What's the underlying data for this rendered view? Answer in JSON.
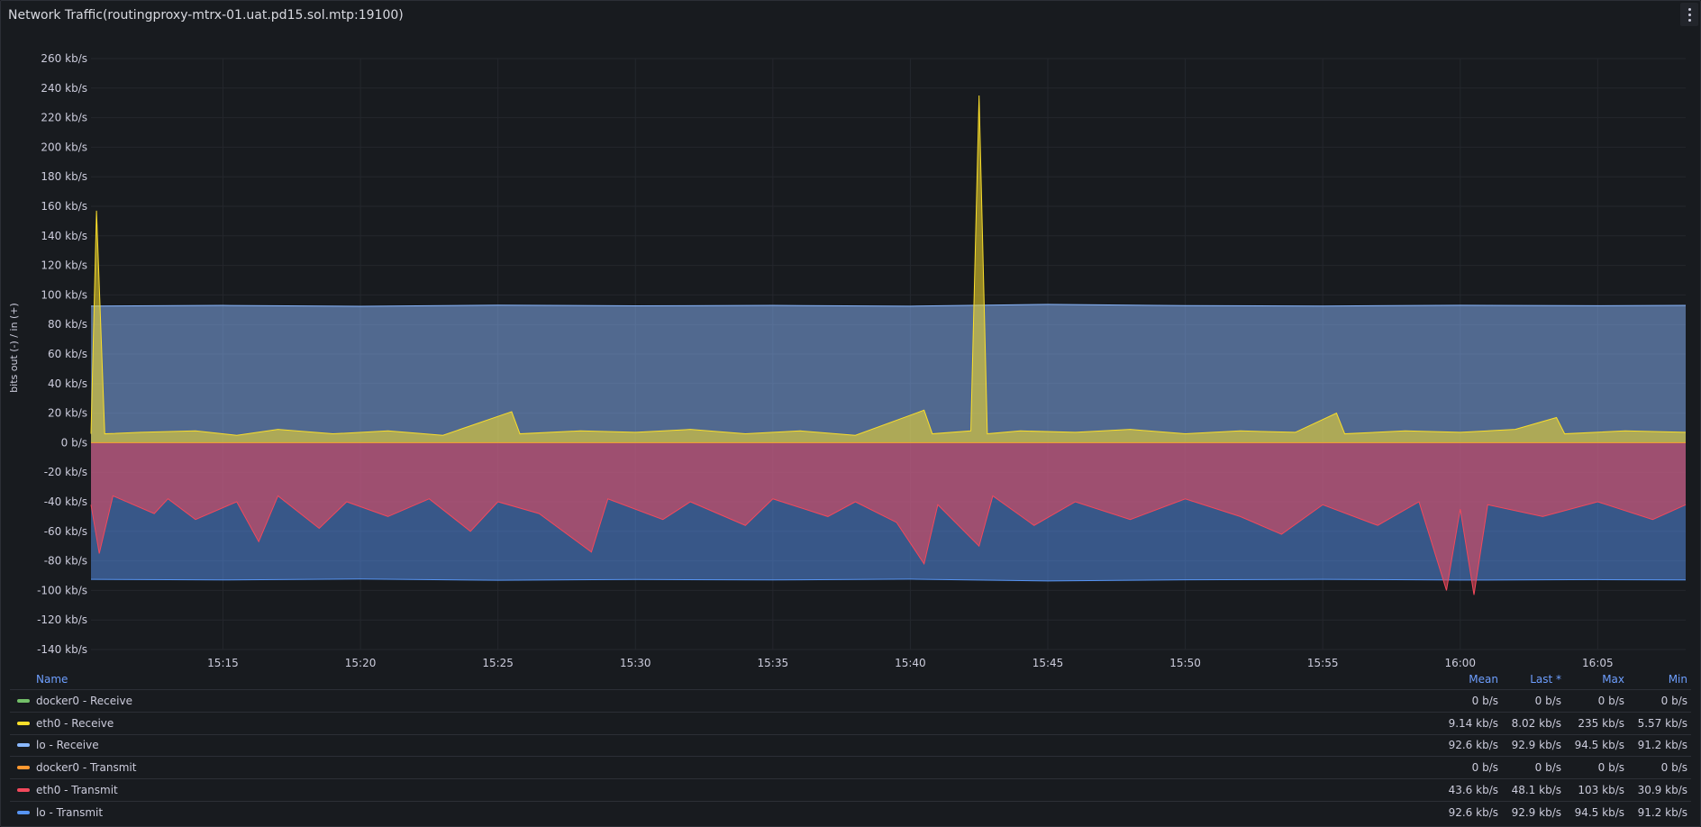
{
  "panel": {
    "title": "Network Traffic(routingproxy-mtrx-01.uat.pd15.sol.mtp:19100)",
    "menu_icon": "vertical-ellipsis-icon"
  },
  "chart_data": {
    "type": "area",
    "ylabel": "bits out (-) / in (+)",
    "xlabel": "",
    "y_unit": "kb/s",
    "ylim": [
      -140,
      260
    ],
    "y_ticks": [
      "260 kb/s",
      "240 kb/s",
      "220 kb/s",
      "200 kb/s",
      "180 kb/s",
      "160 kb/s",
      "140 kb/s",
      "120 kb/s",
      "100 kb/s",
      "80 kb/s",
      "60 kb/s",
      "40 kb/s",
      "20 kb/s",
      "0 b/s",
      "-20 kb/s",
      "-40 kb/s",
      "-60 kb/s",
      "-80 kb/s",
      "-100 kb/s",
      "-120 kb/s",
      "-140 kb/s"
    ],
    "y_tick_values": [
      260,
      240,
      220,
      200,
      180,
      160,
      140,
      120,
      100,
      80,
      60,
      40,
      20,
      0,
      -20,
      -40,
      -60,
      -80,
      -100,
      -120,
      -140
    ],
    "x_ticks": [
      "15:15",
      "15:20",
      "15:25",
      "15:30",
      "15:35",
      "15:40",
      "15:45",
      "15:50",
      "15:55",
      "16:00",
      "16:05"
    ],
    "x_tick_minutes": [
      15,
      20,
      25,
      30,
      35,
      40,
      45,
      50,
      55,
      60,
      65
    ],
    "x_range_minutes": [
      10.2,
      68.2
    ],
    "grid": true,
    "series": [
      {
        "name": "docker0 - Receive",
        "color": "#73bf69",
        "direction": "in",
        "points": [
          [
            10.2,
            0
          ],
          [
            68.2,
            0
          ]
        ]
      },
      {
        "name": "eth0 - Receive",
        "color": "#fade2a",
        "direction": "in",
        "points": [
          [
            10.2,
            6
          ],
          [
            10.4,
            157
          ],
          [
            10.7,
            6
          ],
          [
            12,
            7
          ],
          [
            14,
            8
          ],
          [
            15.5,
            5
          ],
          [
            17,
            9
          ],
          [
            19,
            6
          ],
          [
            21,
            8
          ],
          [
            23,
            5
          ],
          [
            25.5,
            21
          ],
          [
            25.8,
            6
          ],
          [
            28,
            8
          ],
          [
            30,
            7
          ],
          [
            32,
            9
          ],
          [
            34,
            6
          ],
          [
            36,
            8
          ],
          [
            38,
            5
          ],
          [
            40.5,
            22
          ],
          [
            40.8,
            6
          ],
          [
            42.2,
            8
          ],
          [
            42.5,
            235
          ],
          [
            42.8,
            6
          ],
          [
            44,
            8
          ],
          [
            46,
            7
          ],
          [
            48,
            9
          ],
          [
            50,
            6
          ],
          [
            52,
            8
          ],
          [
            54,
            7
          ],
          [
            55.5,
            20
          ],
          [
            55.8,
            6
          ],
          [
            58,
            8
          ],
          [
            60,
            7
          ],
          [
            62,
            9
          ],
          [
            63.5,
            17
          ],
          [
            63.8,
            6
          ],
          [
            66,
            8
          ],
          [
            68.2,
            7
          ]
        ]
      },
      {
        "name": "lo - Receive",
        "color": "#8ab8ff",
        "direction": "in",
        "points": [
          [
            10.2,
            92.5
          ],
          [
            15,
            92.9
          ],
          [
            20,
            92.3
          ],
          [
            25,
            93.1
          ],
          [
            30,
            92.6
          ],
          [
            35,
            92.9
          ],
          [
            40,
            92.4
          ],
          [
            45,
            93.6
          ],
          [
            50,
            92.8
          ],
          [
            55,
            92.5
          ],
          [
            60,
            93.0
          ],
          [
            65,
            92.7
          ],
          [
            68.2,
            92.9
          ]
        ]
      },
      {
        "name": "docker0 - Transmit",
        "color": "#ff9830",
        "direction": "out",
        "points": [
          [
            10.2,
            0
          ],
          [
            68.2,
            0
          ]
        ]
      },
      {
        "name": "eth0 - Transmit",
        "color": "#f2495c",
        "direction": "out",
        "points": [
          [
            10.2,
            -42
          ],
          [
            10.5,
            -75
          ],
          [
            11,
            -36
          ],
          [
            12.5,
            -48
          ],
          [
            13,
            -38
          ],
          [
            14,
            -52
          ],
          [
            15.5,
            -40
          ],
          [
            16.3,
            -67
          ],
          [
            17,
            -36
          ],
          [
            18.5,
            -58
          ],
          [
            19.5,
            -40
          ],
          [
            21,
            -50
          ],
          [
            22.5,
            -38
          ],
          [
            24,
            -60
          ],
          [
            25,
            -40
          ],
          [
            26.5,
            -48
          ],
          [
            28.4,
            -74
          ],
          [
            29,
            -38
          ],
          [
            31,
            -52
          ],
          [
            32,
            -40
          ],
          [
            34,
            -56
          ],
          [
            35,
            -38
          ],
          [
            37,
            -50
          ],
          [
            38,
            -40
          ],
          [
            39.5,
            -54
          ],
          [
            40.5,
            -82
          ],
          [
            41,
            -42
          ],
          [
            42.5,
            -70
          ],
          [
            43,
            -36
          ],
          [
            44.5,
            -56
          ],
          [
            46,
            -40
          ],
          [
            48,
            -52
          ],
          [
            50,
            -38
          ],
          [
            52,
            -50
          ],
          [
            53.5,
            -62
          ],
          [
            55,
            -42
          ],
          [
            57,
            -56
          ],
          [
            58.5,
            -40
          ],
          [
            59.5,
            -100
          ],
          [
            60,
            -45
          ],
          [
            60.5,
            -103
          ],
          [
            61,
            -42
          ],
          [
            63,
            -50
          ],
          [
            65,
            -40
          ],
          [
            67,
            -52
          ],
          [
            68.2,
            -42
          ]
        ]
      },
      {
        "name": "lo - Transmit",
        "color": "#5794f2",
        "direction": "out",
        "points": [
          [
            10.2,
            -92.5
          ],
          [
            15,
            -92.9
          ],
          [
            20,
            -92.3
          ],
          [
            25,
            -93.1
          ],
          [
            30,
            -92.6
          ],
          [
            35,
            -92.9
          ],
          [
            40,
            -92.4
          ],
          [
            45,
            -93.6
          ],
          [
            50,
            -92.8
          ],
          [
            55,
            -92.5
          ],
          [
            60,
            -93.0
          ],
          [
            65,
            -92.7
          ],
          [
            68.2,
            -92.9
          ]
        ]
      }
    ]
  },
  "legend": {
    "columns": {
      "name": "Name",
      "mean": "Mean",
      "last": "Last *",
      "max": "Max",
      "min": "Min"
    },
    "rows": [
      {
        "name": "docker0 - Receive",
        "color": "#73bf69",
        "mean": "0 b/s",
        "last": "0 b/s",
        "max": "0 b/s",
        "min": "0 b/s"
      },
      {
        "name": "eth0 - Receive",
        "color": "#fade2a",
        "mean": "9.14 kb/s",
        "last": "8.02 kb/s",
        "max": "235 kb/s",
        "min": "5.57 kb/s"
      },
      {
        "name": "lo - Receive",
        "color": "#8ab8ff",
        "mean": "92.6 kb/s",
        "last": "92.9 kb/s",
        "max": "94.5 kb/s",
        "min": "91.2 kb/s"
      },
      {
        "name": "docker0 - Transmit",
        "color": "#ff9830",
        "mean": "0 b/s",
        "last": "0 b/s",
        "max": "0 b/s",
        "min": "0 b/s"
      },
      {
        "name": "eth0 - Transmit",
        "color": "#f2495c",
        "mean": "43.6 kb/s",
        "last": "48.1 kb/s",
        "max": "103 kb/s",
        "min": "30.9 kb/s"
      },
      {
        "name": "lo - Transmit",
        "color": "#5794f2",
        "mean": "92.6 kb/s",
        "last": "92.9 kb/s",
        "max": "94.5 kb/s",
        "min": "91.2 kb/s"
      }
    ]
  }
}
